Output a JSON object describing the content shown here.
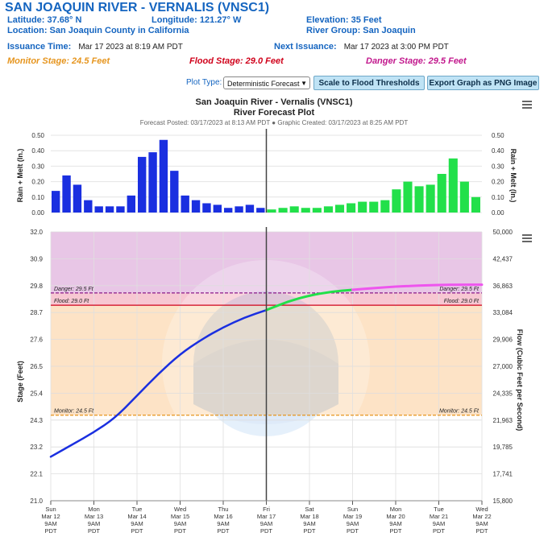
{
  "header": {
    "title": "SAN JOAQUIN RIVER - VERNALIS (VNSC1)",
    "latitude": "Latitude: 37.68° N",
    "longitude": "Longitude: 121.27° W",
    "elevation": "Elevation: 35 Feet",
    "location": "Location: San Joaquin County in California",
    "river_group": "River Group: San Joaquin",
    "issuance_label": "Issuance Time:",
    "issuance_value": "Mar 17 2023 at 8:19 AM PDT",
    "next_issuance_label": "Next Issuance:",
    "next_issuance_value": "Mar 17 2023 at 3:00 PM PDT",
    "monitor_stage": "Monitor Stage: 24.5 Feet",
    "flood_stage": "Flood Stage: 29.0 Feet",
    "danger_stage": "Danger Stage: 29.5 Feet"
  },
  "controls": {
    "plot_type_label": "Plot Type:",
    "plot_type_value": "Deterministic Forecast",
    "scale_button": "Scale to Flood Thresholds",
    "export_button": "Export Graph as PNG Image"
  },
  "colors": {
    "header_blue": "#1565c0",
    "monitor": "#e6951e",
    "flood": "#d0021b",
    "danger": "#c2188d",
    "observed": "#1a2fe0",
    "forecast": "#22e04a",
    "forecast_stage_end": "#ee55ee"
  },
  "chart_header": {
    "title": "San Joaquin River - Vernalis (VNSC1)",
    "subtitle": "River Forecast Plot",
    "posted": "Forecast Posted: 03/17/2023 at 8:13 AM PDT ● Graphic Created: 03/17/2023 at 8:25 AM PDT"
  },
  "chart_data": [
    {
      "type": "bar",
      "ylabel_left": "Rain + Melt (In.)",
      "ylabel_right": "Rain + Melt (In.)",
      "ylim": [
        0,
        0.5
      ],
      "yticks": [
        "0.00",
        "0.10",
        "0.20",
        "0.30",
        "0.40",
        "0.50"
      ],
      "observed_values": [
        0.14,
        0.24,
        0.18,
        0.08,
        0.04,
        0.04,
        0.04,
        0.11,
        0.36,
        0.39,
        0.47,
        0.27,
        0.11,
        0.08,
        0.06,
        0.05,
        0.03,
        0.04,
        0.05,
        0.03
      ],
      "forecast_values": [
        0.02,
        0.03,
        0.04,
        0.03,
        0.03,
        0.04,
        0.05,
        0.06,
        0.07,
        0.07,
        0.08,
        0.15,
        0.2,
        0.17,
        0.18,
        0.25,
        0.35,
        0.2,
        0.1
      ]
    },
    {
      "type": "line",
      "ylabel_left": "Stage (Feet)",
      "ylabel_right": "Flow (Cubic Feet per Second)",
      "ylim": [
        21.0,
        32.0
      ],
      "yticks_left": [
        "21.0",
        "22.1",
        "23.2",
        "24.3",
        "25.4",
        "26.5",
        "27.6",
        "28.7",
        "29.8",
        "30.9",
        "32.0"
      ],
      "yticks_right": [
        "15,800",
        "17,741",
        "19,785",
        "21,963",
        "24,335",
        "27,000",
        "29,906",
        "33,084",
        "36,863",
        "42,437",
        "50,000"
      ],
      "x_ticks": [
        {
          "day": "Sun",
          "date": "Mar 12",
          "time": "9AM",
          "tz": "PDT"
        },
        {
          "day": "Mon",
          "date": "Mar 13",
          "time": "9AM",
          "tz": "PDT"
        },
        {
          "day": "Tue",
          "date": "Mar 14",
          "time": "9AM",
          "tz": "PDT"
        },
        {
          "day": "Wed",
          "date": "Mar 15",
          "time": "9AM",
          "tz": "PDT"
        },
        {
          "day": "Thu",
          "date": "Mar 16",
          "time": "9AM",
          "tz": "PDT"
        },
        {
          "day": "Fri",
          "date": "Mar 17",
          "time": "9AM",
          "tz": "PDT"
        },
        {
          "day": "Sat",
          "date": "Mar 18",
          "time": "9AM",
          "tz": "PDT"
        },
        {
          "day": "Sun",
          "date": "Mar 19",
          "time": "9AM",
          "tz": "PDT"
        },
        {
          "day": "Mon",
          "date": "Mar 20",
          "time": "9AM",
          "tz": "PDT"
        },
        {
          "day": "Tue",
          "date": "Mar 21",
          "time": "9AM",
          "tz": "PDT"
        },
        {
          "day": "Wed",
          "date": "Mar 22",
          "time": "9AM",
          "tz": "PDT"
        }
      ],
      "thresholds": {
        "danger": {
          "label": "Danger: 29.5 Ft",
          "value": 29.5
        },
        "flood": {
          "label": "Flood: 29.0 Ft",
          "value": 29.0
        },
        "monitor": {
          "label": "Monitor: 24.5 Ft",
          "value": 24.5
        }
      },
      "observed": {
        "x_days": [
          0,
          0.5,
          1.0,
          1.5,
          2.0,
          2.5,
          3.0,
          3.5,
          4.0,
          4.5,
          5.0
        ],
        "stage": [
          22.8,
          23.3,
          23.8,
          24.4,
          25.3,
          26.2,
          27.0,
          27.6,
          28.1,
          28.5,
          28.8
        ]
      },
      "forecast": {
        "x_days": [
          5.0,
          5.5,
          6.0,
          6.5,
          7.0,
          7.5,
          8.0,
          8.5,
          9.0,
          9.5,
          10.0
        ],
        "stage": [
          28.8,
          29.15,
          29.4,
          29.55,
          29.63,
          29.7,
          29.76,
          29.8,
          29.83,
          29.84,
          29.84
        ]
      }
    }
  ]
}
